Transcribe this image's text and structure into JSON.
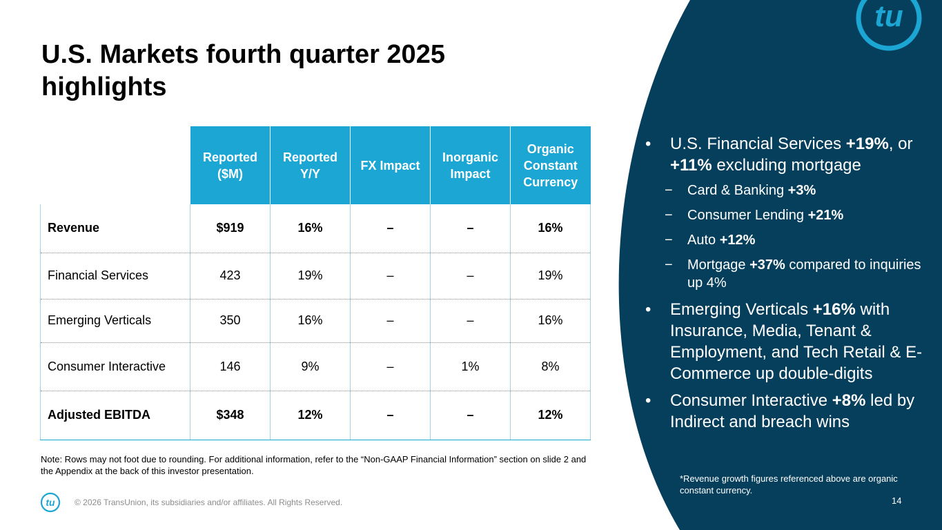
{
  "colors": {
    "navy": "#053f5c",
    "accent": "#1ba6d4"
  },
  "slide": {
    "title": "U.S. Markets fourth quarter 2025 highlights",
    "note": "Note: Rows may not foot due to rounding. For additional information, refer to the “Non-GAAP Financial Information” section on slide 2 and the Appendix at the back of this investor presentation.",
    "copyright": "© 2026 TransUnion, its subsidiaries and/or affiliates. All Rights Reserved.",
    "page_number": "14",
    "logo_text": "tu"
  },
  "table": {
    "headers": [
      "Reported ($M)",
      "Reported Y/Y",
      "FX Impact",
      "Inorganic Impact",
      "Organic Constant Currency"
    ],
    "rows": [
      {
        "label": "Revenue",
        "values": [
          "$919",
          "16%",
          "–",
          "–",
          "16%"
        ]
      },
      {
        "label": "Financial Services",
        "values": [
          "423",
          "19%",
          "–",
          "–",
          "19%"
        ]
      },
      {
        "label": "Emerging Verticals",
        "values": [
          "350",
          "16%",
          "–",
          "–",
          "16%"
        ]
      },
      {
        "label": "Consumer Interactive",
        "values": [
          "146",
          "9%",
          "–",
          "1%",
          "8%"
        ]
      },
      {
        "label": "Adjusted EBITDA",
        "values": [
          "$348",
          "12%",
          "–",
          "–",
          "12%"
        ]
      }
    ]
  },
  "bullets": {
    "b1": {
      "pre": "U.S. Financial Services ",
      "v1": "+19%",
      "mid": ", or ",
      "v2": "+11%",
      "post": " excluding mortgage"
    },
    "subs": [
      {
        "pre": "Card & Banking ",
        "val": "+3%",
        "post": ""
      },
      {
        "pre": "Consumer Lending ",
        "val": "+21%",
        "post": ""
      },
      {
        "pre": "Auto ",
        "val": "+12%",
        "post": ""
      },
      {
        "pre": "Mortgage ",
        "val": "+37%",
        "post": " compared to inquiries up 4%"
      }
    ],
    "b2": {
      "pre": "Emerging Verticals ",
      "val": "+16%",
      "post": " with Insurance, Media, Tenant & Employment, and Tech Retail & E-Commerce up double-digits"
    },
    "b3": {
      "pre": "Consumer Interactive ",
      "val": "+8%",
      "post": " led by Indirect and breach wins"
    },
    "footnote": "*Revenue growth figures referenced above are organic constant currency.",
    "dot": "•",
    "dash": "−"
  }
}
